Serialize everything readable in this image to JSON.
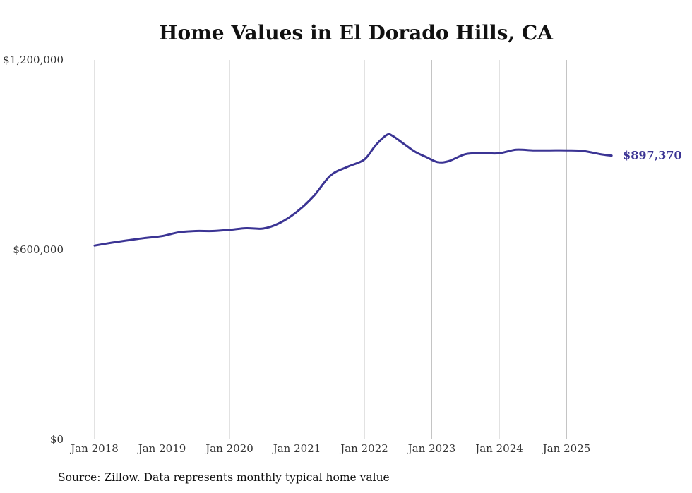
{
  "chart_data": {
    "type": "line",
    "title": "Home Values in El Dorado Hills, CA",
    "source_note": "Source: Zillow. Data represents monthly typical home value",
    "ylim": [
      0,
      1200000
    ],
    "y_ticks": [
      {
        "value": 0,
        "label": "$0"
      },
      {
        "value": 600000,
        "label": "$600,000"
      },
      {
        "value": 1200000,
        "label": "$1,200,000"
      }
    ],
    "x_ticks": [
      "Jan 2018",
      "Jan 2019",
      "Jan 2020",
      "Jan 2021",
      "Jan 2022",
      "Jan 2023",
      "Jan 2024",
      "Jan 2025"
    ],
    "grid": "vertical",
    "line_color": "#3b3494",
    "end_label": "$897,370",
    "series": [
      {
        "x": [
          "2018-01",
          "2018-04",
          "2018-07",
          "2018-10",
          "2019-01",
          "2019-04",
          "2019-07",
          "2019-10",
          "2020-01",
          "2020-04",
          "2020-07",
          "2020-10",
          "2021-01",
          "2021-04",
          "2021-07",
          "2021-10",
          "2022-01",
          "2022-03",
          "2022-05",
          "2022-06",
          "2022-08",
          "2022-10",
          "2022-12",
          "2023-02",
          "2023-04",
          "2023-07",
          "2023-10",
          "2024-01",
          "2024-04",
          "2024-07",
          "2024-10",
          "2025-01",
          "2025-04",
          "2025-07",
          "2025-09"
        ],
        "y": [
          613000,
          622000,
          630000,
          637000,
          643000,
          655000,
          659000,
          659000,
          663000,
          668000,
          667000,
          685000,
          720000,
          770000,
          835000,
          862000,
          885000,
          930000,
          963000,
          960000,
          935000,
          910000,
          893000,
          877000,
          880000,
          902000,
          905000,
          905000,
          916000,
          914000,
          914000,
          914000,
          912000,
          902000,
          897370
        ]
      }
    ]
  }
}
